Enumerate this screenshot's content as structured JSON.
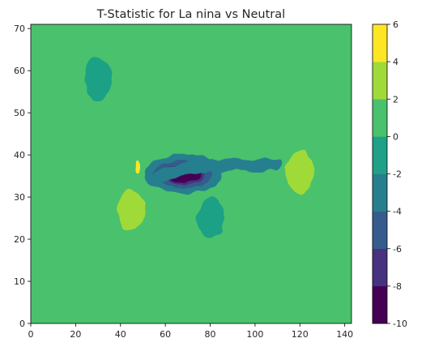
{
  "chart_data": {
    "type": "heatmap",
    "subtype": "filled-contour",
    "title": "T-Statistic for La nina vs Neutral",
    "xlabel": "",
    "ylabel": "",
    "xlim": [
      0,
      143
    ],
    "ylim": [
      0,
      71
    ],
    "x_ticks": [
      0,
      20,
      40,
      60,
      80,
      100,
      120,
      140
    ],
    "y_ticks": [
      0,
      10,
      20,
      30,
      40,
      50,
      60,
      70
    ],
    "grid": false,
    "colorbar": {
      "levels": [
        -10,
        -8,
        -6,
        -4,
        -2,
        0,
        2,
        4,
        6
      ],
      "tick_labels": [
        "-10",
        "-8",
        "-6",
        "-4",
        "-2",
        "0",
        "2",
        "4",
        "6"
      ],
      "colors": [
        "#440154",
        "#46327e",
        "#365c8d",
        "#277f8e",
        "#1fa187",
        "#4ac16d",
        "#a0da39",
        "#fde725"
      ]
    },
    "background_band": "0 to 2",
    "features": [
      {
        "name": "minimum",
        "x": 68,
        "y": 35.5,
        "value": -9
      },
      {
        "name": "negative-ridge",
        "x": [
          58,
          70,
          80,
          90,
          100,
          110
        ],
        "y": [
          35,
          37,
          37.5,
          37.5,
          37.5,
          37.5
        ],
        "value": -2.5
      },
      {
        "name": "positive-patch",
        "x": 45,
        "y": 27,
        "value": 2.5
      },
      {
        "name": "positive-patch",
        "x": 120,
        "y": 36,
        "value": 2.5
      },
      {
        "name": "positive-patch",
        "x": 47,
        "y": 37,
        "value": 4.5
      },
      {
        "name": "negative-patch",
        "x": 30,
        "y": 58,
        "value": -1
      },
      {
        "name": "negative-patch",
        "x": 80,
        "y": 25,
        "value": -1
      }
    ]
  }
}
